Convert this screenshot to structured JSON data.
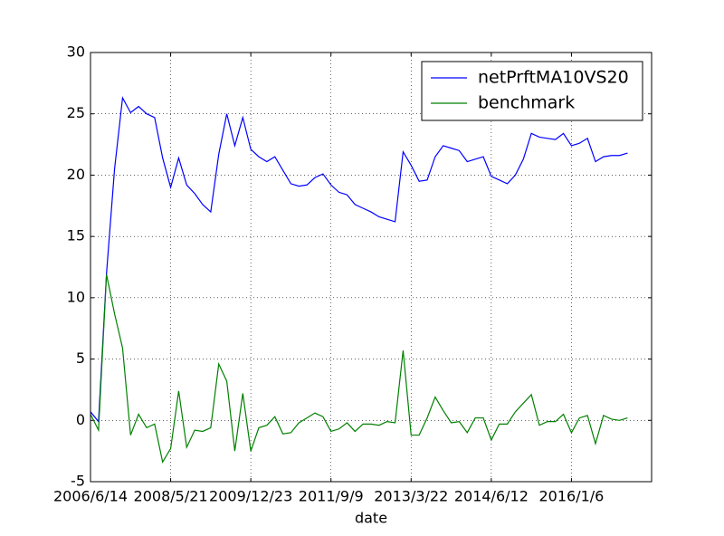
{
  "chart_data": {
    "type": "line",
    "xlabel": "date",
    "categories": [
      "2006/6/14",
      null,
      null,
      null,
      null,
      null,
      null,
      null,
      null,
      null,
      "2008/5/21",
      null,
      null,
      null,
      null,
      null,
      null,
      null,
      null,
      null,
      "2009/12/23",
      null,
      null,
      null,
      null,
      null,
      null,
      null,
      null,
      null,
      "2011/9/9",
      null,
      null,
      null,
      null,
      null,
      null,
      null,
      null,
      null,
      "2013/3/22",
      null,
      null,
      null,
      null,
      null,
      null,
      null,
      null,
      null,
      "2014/6/12",
      null,
      null,
      null,
      null,
      null,
      null,
      null,
      null,
      null,
      "2016/1/6",
      null,
      null,
      null,
      null,
      null,
      null,
      null
    ],
    "series": [
      {
        "name": "netPrftMA10VS20",
        "color": "#0000ff",
        "values": [
          0.7,
          -0.1,
          12.0,
          20.5,
          26.3,
          25.1,
          25.6,
          25.0,
          24.7,
          21.4,
          19.0,
          21.4,
          19.2,
          18.5,
          17.6,
          17.0,
          21.7,
          25.0,
          22.4,
          24.7,
          22.1,
          21.5,
          21.1,
          21.5,
          20.4,
          19.3,
          19.1,
          19.2,
          19.8,
          20.1,
          19.2,
          18.6,
          18.4,
          17.6,
          17.3,
          17.0,
          16.6,
          16.4,
          16.2,
          21.9,
          20.8,
          19.5,
          19.6,
          21.5,
          22.4,
          22.2,
          22.0,
          21.1,
          21.3,
          21.5,
          19.9,
          19.6,
          19.3,
          20.0,
          21.3,
          23.4,
          23.1,
          23.0,
          22.9,
          23.4,
          22.4,
          22.6,
          23.0,
          21.1,
          21.5,
          21.6,
          21.6,
          21.8
        ]
      },
      {
        "name": "benchmark",
        "color": "#008000",
        "values": [
          0.5,
          -0.8,
          11.9,
          8.7,
          5.9,
          -1.2,
          0.5,
          -0.6,
          -0.3,
          -3.4,
          -2.3,
          2.4,
          -2.2,
          -0.8,
          -0.9,
          -0.6,
          4.6,
          3.2,
          -2.5,
          2.2,
          -2.5,
          -0.6,
          -0.4,
          0.3,
          -1.1,
          -1.0,
          -0.2,
          0.2,
          0.6,
          0.3,
          -0.9,
          -0.7,
          -0.2,
          -0.9,
          -0.3,
          -0.3,
          -0.4,
          -0.1,
          -0.2,
          5.7,
          -1.2,
          -1.2,
          0.2,
          1.9,
          0.8,
          -0.2,
          -0.1,
          -1.0,
          0.2,
          0.2,
          -1.6,
          -0.3,
          -0.3,
          0.7,
          1.4,
          2.1,
          -0.4,
          -0.1,
          -0.1,
          0.5,
          -1.0,
          0.2,
          0.4,
          -1.9,
          0.4,
          0.1,
          0.0,
          0.2
        ]
      }
    ],
    "ylim": [
      -5,
      30
    ],
    "yticks": [
      -5,
      0,
      5,
      10,
      15,
      20,
      25,
      30
    ],
    "grid": true,
    "legend": "upper right"
  }
}
